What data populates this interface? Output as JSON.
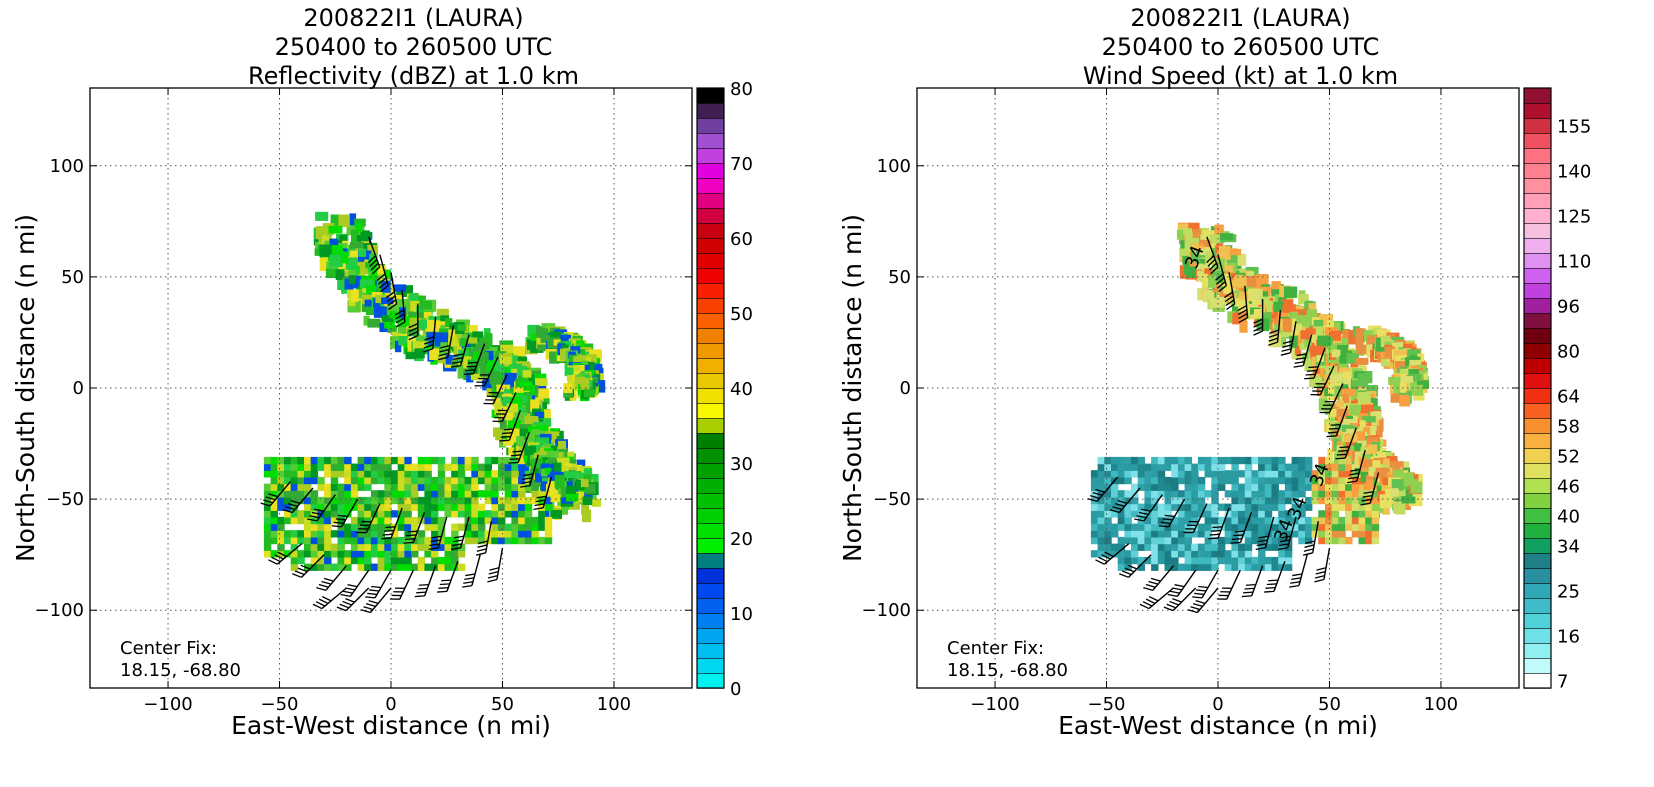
{
  "chart_data": [
    {
      "type": "heatmap",
      "title_lines": [
        "200822I1 (LAURA)",
        "250400 to 260500 UTC",
        "Reflectivity (dBZ) at 1.0 km"
      ],
      "xlabel": "East-West distance (n mi)",
      "ylabel": "North-South distance (n mi)",
      "xlim": [
        -135,
        135
      ],
      "ylim": [
        -135,
        135
      ],
      "xticks": [
        -100,
        -50,
        0,
        50,
        100
      ],
      "yticks": [
        -100,
        -50,
        0,
        50,
        100
      ],
      "grid": true,
      "annotation_lines": [
        "Center Fix:",
        "18.15, -68.80"
      ],
      "colorbar": {
        "min": 0,
        "max": 80,
        "tick_values": [
          0,
          10,
          20,
          30,
          40,
          50,
          60,
          70,
          80
        ],
        "tick_labels": [
          "0",
          "10",
          "20",
          "30",
          "40",
          "50",
          "60",
          "70",
          "80"
        ],
        "colors": [
          "#00f0f0",
          "#00d8f0",
          "#00bff0",
          "#00a6f0",
          "#0080f0",
          "#0060f0",
          "#0048f0",
          "#0030d8",
          "#008080",
          "#00ee00",
          "#00e000",
          "#00d000",
          "#00c000",
          "#00b000",
          "#00a000",
          "#009000",
          "#008000",
          "#a8d000",
          "#f8f800",
          "#f0e000",
          "#e8c800",
          "#f0b000",
          "#f09800",
          "#f08000",
          "#f86000",
          "#f84000",
          "#f82000",
          "#f00000",
          "#e00000",
          "#d00000",
          "#c80010",
          "#d00040",
          "#e00080",
          "#f000c0",
          "#e000e0",
          "#c040e0",
          "#a050d0",
          "#7040a0",
          "#402050",
          "#000000"
        ]
      },
      "field_color_cycle": [
        "#22bb22",
        "#55cc33",
        "#00dd00",
        "#aacc22",
        "#e8e020",
        "#33aa33",
        "#0050e0",
        "#22cc44",
        "#c8dc20",
        "#009922"
      ],
      "band_north": [
        [
          -25,
          72
        ],
        [
          -22,
          62
        ],
        [
          -15,
          50
        ],
        [
          -5,
          40
        ],
        [
          5,
          32
        ],
        [
          15,
          26
        ],
        [
          25,
          22
        ],
        [
          35,
          18
        ],
        [
          45,
          12
        ],
        [
          52,
          5
        ],
        [
          55,
          -5
        ],
        [
          58,
          -15
        ],
        [
          62,
          -25
        ],
        [
          68,
          -35
        ],
        [
          75,
          -42
        ],
        [
          80,
          -48
        ]
      ],
      "band_south": [
        [
          -55,
          -35
        ],
        [
          -40,
          -38
        ],
        [
          -20,
          -40
        ],
        [
          0,
          -40
        ],
        [
          20,
          -42
        ],
        [
          40,
          -42
        ],
        [
          58,
          -42
        ]
      ],
      "barbs": [
        [
          -10,
          68,
          160
        ],
        [
          -5,
          60,
          165
        ],
        [
          0,
          52,
          170
        ],
        [
          5,
          44,
          175
        ],
        [
          12,
          38,
          180
        ],
        [
          20,
          32,
          185
        ],
        [
          28,
          28,
          190
        ],
        [
          35,
          24,
          195
        ],
        [
          42,
          20,
          200
        ],
        [
          48,
          14,
          205
        ],
        [
          52,
          6,
          205
        ],
        [
          56,
          -2,
          205
        ],
        [
          58,
          -10,
          200
        ],
        [
          62,
          -20,
          200
        ],
        [
          66,
          -30,
          195
        ],
        [
          72,
          -40,
          195
        ],
        [
          -45,
          -42,
          220
        ],
        [
          -35,
          -45,
          220
        ],
        [
          -25,
          -48,
          215
        ],
        [
          -15,
          -50,
          210
        ],
        [
          -5,
          -52,
          205
        ],
        [
          5,
          -54,
          200
        ],
        [
          15,
          -56,
          200
        ],
        [
          25,
          -58,
          195
        ],
        [
          35,
          -58,
          195
        ],
        [
          45,
          -60,
          190
        ],
        [
          -40,
          -70,
          230
        ],
        [
          -30,
          -75,
          225
        ],
        [
          -20,
          -80,
          220
        ],
        [
          -10,
          -82,
          215
        ],
        [
          0,
          -82,
          210
        ],
        [
          10,
          -82,
          205
        ],
        [
          20,
          -80,
          200
        ],
        [
          30,
          -78,
          200
        ],
        [
          40,
          -75,
          195
        ],
        [
          50,
          -72,
          190
        ],
        [
          -20,
          -90,
          230
        ],
        [
          -10,
          -90,
          225
        ],
        [
          0,
          -90,
          220
        ]
      ]
    },
    {
      "type": "heatmap",
      "title_lines": [
        "200822I1 (LAURA)",
        "250400 to 260500 UTC",
        "Wind Speed (kt) at 1.0 km"
      ],
      "xlabel": "East-West distance (n mi)",
      "ylabel": "North-South distance (n mi)",
      "xlim": [
        -135,
        135
      ],
      "ylim": [
        -135,
        135
      ],
      "xticks": [
        -100,
        -50,
        0,
        50,
        100
      ],
      "yticks": [
        -100,
        -50,
        0,
        50,
        100
      ],
      "grid": true,
      "annotation_lines": [
        "Center Fix:",
        "18.15, -68.80"
      ],
      "contour_labels": [
        [
          -8,
          58,
          "34"
        ],
        [
          48,
          -40,
          "34"
        ],
        [
          38,
          -55,
          "34"
        ],
        [
          32,
          -65,
          "34"
        ]
      ],
      "colorbar": {
        "tick_labels": [
          "7",
          "16",
          "25",
          "34",
          "40",
          "46",
          "52",
          "58",
          "64",
          "80",
          "96",
          "110",
          "125",
          "140",
          "155"
        ],
        "tick_slots": [
          0,
          3,
          6,
          9,
          11,
          13,
          15,
          17,
          19,
          22,
          25,
          28,
          31,
          34,
          37
        ],
        "colors": [
          "#ffffff",
          "#c0fafa",
          "#90f0f0",
          "#70e0e8",
          "#50d0d8",
          "#40bcc8",
          "#30a8b8",
          "#2890a0",
          "#208088",
          "#10a060",
          "#20b040",
          "#40c040",
          "#80d040",
          "#b0e050",
          "#e0e060",
          "#f0d050",
          "#f8b040",
          "#f89030",
          "#f86020",
          "#f03010",
          "#e01010",
          "#c00000",
          "#900000",
          "#700010",
          "#801040",
          "#a020a0",
          "#c040e0",
          "#d060f0",
          "#e090f0",
          "#f0b0f0",
          "#f8c0e0",
          "#ffb0d0",
          "#ffa0b8",
          "#ff90a0",
          "#ff8090",
          "#ff7080",
          "#f05060",
          "#d03040",
          "#b01030",
          "#901030"
        ]
      },
      "field_color_cycle": [
        "#e8e060",
        "#c0dc60",
        "#f0c050",
        "#90d050",
        "#f8a040",
        "#60c050",
        "#f07030",
        "#40b040",
        "#d8e070",
        "#e89040"
      ],
      "field_color_cycle_south": [
        "#2a9aa0",
        "#40b8c0",
        "#208890",
        "#80e0e8",
        "#1c7c84",
        "#30a0a8",
        "#60d0d8",
        "#2a9ca4"
      ],
      "band_north": [
        [
          -10,
          68
        ],
        [
          -5,
          62
        ],
        [
          0,
          54
        ],
        [
          8,
          46
        ],
        [
          18,
          40
        ],
        [
          28,
          34
        ],
        [
          38,
          28
        ],
        [
          46,
          20
        ],
        [
          52,
          10
        ],
        [
          56,
          0
        ],
        [
          58,
          -10
        ],
        [
          60,
          -20
        ],
        [
          62,
          -28
        ],
        [
          66,
          -36
        ],
        [
          72,
          -42
        ],
        [
          78,
          -46
        ]
      ],
      "band_south": [
        [
          -40,
          -38
        ],
        [
          -20,
          -40
        ],
        [
          0,
          -40
        ],
        [
          20,
          -42
        ],
        [
          40,
          -42
        ],
        [
          58,
          -42
        ]
      ],
      "barbs": [
        [
          -5,
          68,
          160
        ],
        [
          0,
          60,
          165
        ],
        [
          5,
          52,
          170
        ],
        [
          12,
          46,
          175
        ],
        [
          20,
          40,
          180
        ],
        [
          28,
          35,
          185
        ],
        [
          35,
          30,
          190
        ],
        [
          42,
          24,
          195
        ],
        [
          48,
          18,
          200
        ],
        [
          52,
          10,
          205
        ],
        [
          56,
          2,
          205
        ],
        [
          58,
          -8,
          200
        ],
        [
          62,
          -18,
          200
        ],
        [
          66,
          -28,
          195
        ],
        [
          72,
          -38,
          195
        ],
        [
          -45,
          -40,
          220
        ],
        [
          -35,
          -45,
          220
        ],
        [
          -25,
          -48,
          215
        ],
        [
          -15,
          -50,
          210
        ],
        [
          -5,
          -52,
          205
        ],
        [
          5,
          -54,
          200
        ],
        [
          15,
          -56,
          200
        ],
        [
          25,
          -58,
          195
        ],
        [
          35,
          -58,
          195
        ],
        [
          45,
          -60,
          190
        ],
        [
          -40,
          -70,
          230
        ],
        [
          -30,
          -75,
          225
        ],
        [
          -20,
          -80,
          220
        ],
        [
          -10,
          -82,
          215
        ],
        [
          0,
          -82,
          210
        ],
        [
          10,
          -82,
          205
        ],
        [
          20,
          -80,
          200
        ],
        [
          30,
          -78,
          200
        ],
        [
          40,
          -75,
          195
        ],
        [
          50,
          -72,
          190
        ],
        [
          -20,
          -90,
          230
        ],
        [
          -10,
          -90,
          225
        ],
        [
          0,
          -90,
          220
        ]
      ]
    }
  ]
}
